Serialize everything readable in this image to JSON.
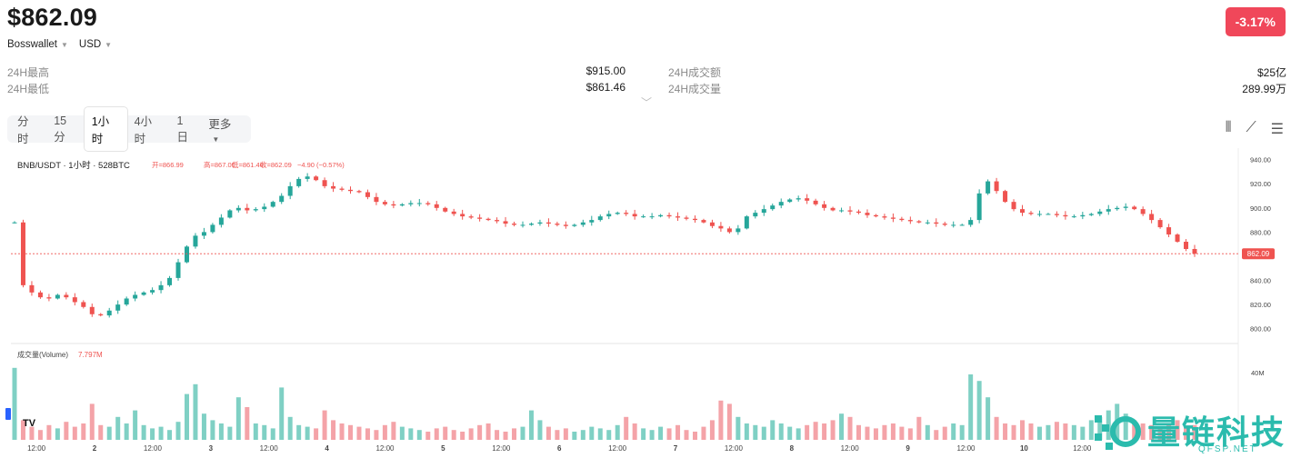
{
  "header": {
    "price": "$862.09",
    "wallet": "Bosswallet",
    "currency": "USD",
    "change": "-3.17%"
  },
  "stats": {
    "high_label": "24H最高",
    "high_value": "$915.00",
    "low_label": "24H最低",
    "low_value": "$861.46",
    "amount_label": "24H成交额",
    "amount_value": "$25亿",
    "volume_label": "24H成交量",
    "volume_value": "289.99万"
  },
  "tabs": [
    {
      "label": "分时"
    },
    {
      "label": "15分"
    },
    {
      "label": "1小时"
    },
    {
      "label": "4小时"
    },
    {
      "label": "1日"
    },
    {
      "label": "更多"
    }
  ],
  "chart_legend": {
    "symbol": "BNB/USDT · 1小时 · 528BTC",
    "open": "开=866.99",
    "high": "高=867.00",
    "low": "低=861.46",
    "close": "收=862.09",
    "change": "−4.90 (−0.57%)"
  },
  "volume_legend": {
    "title": "成交量(Volume)",
    "value": "7.797M"
  },
  "colors": {
    "up": "#26a69a",
    "down": "#ef5350",
    "badge": "#f0475a"
  },
  "watermark": {
    "title": "量链科技",
    "url": "QFSP.NET"
  },
  "chart_data": [
    {
      "type": "candlestick",
      "ylim": [
        790,
        945
      ],
      "y_ticks": [
        "940.00",
        "920.00",
        "900.00",
        "880.00",
        "860.00",
        "840.00",
        "820.00",
        "800.00"
      ],
      "last_price_label": "862.09",
      "x_ticks": [
        "12:00",
        "2",
        "12:00",
        "3",
        "12:00",
        "4",
        "12:00",
        "5",
        "12:00",
        "6",
        "12:00",
        "7",
        "12:00",
        "8",
        "12:00",
        "9",
        "12:00",
        "10",
        "12:00"
      ],
      "close_path": [
        888,
        836,
        830,
        826,
        825,
        828,
        826,
        822,
        818,
        812,
        811,
        815,
        820,
        825,
        828,
        830,
        832,
        836,
        842,
        855,
        868,
        877,
        880,
        886,
        892,
        898,
        900,
        898,
        899,
        901,
        905,
        910,
        918,
        924,
        926,
        923,
        918,
        916,
        915,
        914,
        913,
        909,
        905,
        903,
        902,
        903,
        904,
        904,
        903,
        900,
        897,
        895,
        893,
        892,
        891,
        890,
        889,
        887,
        886,
        886,
        887,
        888,
        887,
        886,
        885,
        886,
        888,
        890,
        893,
        895,
        896,
        895,
        893,
        893,
        893,
        894,
        893,
        892,
        891,
        890,
        888,
        885,
        883,
        880,
        883,
        893,
        896,
        899,
        902,
        905,
        907,
        908,
        906,
        903,
        900,
        898,
        898,
        897,
        896,
        894,
        893,
        892,
        891,
        890,
        889,
        888,
        888,
        887,
        886,
        886,
        886,
        890,
        912,
        922,
        914,
        905,
        899,
        896,
        895,
        895,
        895,
        894,
        893,
        893,
        894,
        895,
        897,
        899,
        900,
        901,
        899,
        895,
        890,
        884,
        878,
        872,
        866,
        862.09
      ]
    },
    {
      "type": "bar",
      "title": "成交量(Volume)",
      "y_ticks": [
        "40M"
      ],
      "volume_path": [
        44,
        12,
        8,
        6,
        9,
        7,
        11,
        8,
        10,
        22,
        9,
        8,
        14,
        10,
        18,
        9,
        7,
        8,
        6,
        11,
        28,
        34,
        16,
        12,
        10,
        8,
        26,
        20,
        10,
        9,
        7,
        32,
        14,
        9,
        8,
        7,
        18,
        12,
        10,
        9,
        8,
        7,
        6,
        9,
        11,
        8,
        7,
        6,
        5,
        7,
        8,
        6,
        5,
        7,
        9,
        10,
        6,
        5,
        7,
        8,
        18,
        12,
        8,
        6,
        7,
        5,
        6,
        8,
        7,
        6,
        9,
        14,
        10,
        7,
        6,
        8,
        7,
        9,
        6,
        5,
        8,
        12,
        24,
        22,
        14,
        10,
        9,
        8,
        12,
        10,
        8,
        7,
        9,
        11,
        10,
        12,
        16,
        14,
        9,
        8,
        7,
        9,
        10,
        8,
        7,
        14,
        9,
        6,
        8,
        10,
        9,
        40,
        36,
        26,
        14,
        10,
        9,
        12,
        10,
        8,
        9,
        11,
        10,
        9,
        8,
        12,
        14,
        18,
        22,
        16,
        12,
        10,
        9,
        8,
        10,
        12,
        8,
        9
      ]
    }
  ]
}
